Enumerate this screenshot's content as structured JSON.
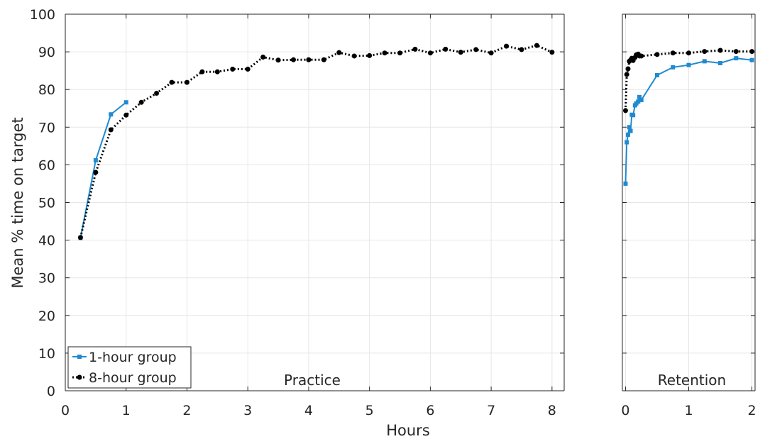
{
  "chart_data": {
    "type": "line",
    "ylabel": "Mean % time on target",
    "xlabel": "Hours",
    "ylim": [
      0,
      100
    ],
    "yticks": [
      0,
      10,
      20,
      30,
      40,
      50,
      60,
      70,
      80,
      90,
      100
    ],
    "grid": true,
    "legend_position": "bottom-left",
    "panels": [
      {
        "label": "Practice",
        "xlim": [
          0,
          8.2
        ],
        "xticks": [
          0,
          1,
          2,
          3,
          4,
          5,
          6,
          7,
          8
        ],
        "series": [
          {
            "name": "1-hour group",
            "color": "#1f8ad0",
            "x": [
              0.25,
              0.5,
              0.75,
              1.0
            ],
            "y": [
              40.6,
              61.2,
              73.4,
              76.6
            ]
          },
          {
            "name": "8-hour group",
            "color": "#000000",
            "x": [
              0.25,
              0.5,
              0.75,
              1.0,
              1.25,
              1.5,
              1.75,
              2.0,
              2.25,
              2.5,
              2.75,
              3.0,
              3.25,
              3.5,
              3.75,
              4.0,
              4.25,
              4.5,
              4.75,
              5.0,
              5.25,
              5.5,
              5.75,
              6.0,
              6.25,
              6.5,
              6.75,
              7.0,
              7.25,
              7.5,
              7.75,
              8.0
            ],
            "y": [
              40.7,
              58.0,
              69.3,
              73.2,
              76.6,
              79.0,
              81.9,
              81.9,
              84.7,
              84.7,
              85.4,
              85.4,
              88.6,
              87.8,
              87.9,
              87.9,
              87.9,
              89.8,
              88.9,
              89.0,
              89.7,
              89.7,
              90.7,
              89.7,
              90.7,
              89.9,
              90.6,
              89.7,
              91.5,
              90.6,
              91.7,
              89.9
            ]
          }
        ]
      },
      {
        "label": "Retention",
        "xlim": [
          -0.05,
          2.05
        ],
        "xticks": [
          0,
          1,
          2
        ],
        "series": [
          {
            "name": "1-hour group",
            "color": "#1f8ad0",
            "x": [
              0.0,
              0.02,
              0.04,
              0.06,
              0.08,
              0.1,
              0.12,
              0.15,
              0.17,
              0.2,
              0.22,
              0.25,
              0.5,
              0.75,
              1.0,
              1.25,
              1.5,
              1.75,
              2.0
            ],
            "y": [
              55.0,
              66.0,
              68.0,
              70.0,
              69.0,
              73.3,
              73.2,
              75.8,
              76.3,
              76.8,
              78.0,
              77.2,
              83.8,
              85.9,
              86.5,
              87.5,
              87.0,
              88.3,
              87.8
            ]
          },
          {
            "name": "8-hour group",
            "color": "#000000",
            "x": [
              0.0,
              0.02,
              0.04,
              0.06,
              0.08,
              0.1,
              0.12,
              0.15,
              0.17,
              0.2,
              0.22,
              0.25,
              0.5,
              0.75,
              1.0,
              1.25,
              1.5,
              1.75,
              2.0
            ],
            "y": [
              74.4,
              84.0,
              85.5,
              87.5,
              87.8,
              88.3,
              87.7,
              88.5,
              89.2,
              89.4,
              88.9,
              88.9,
              89.3,
              89.7,
              89.7,
              90.1,
              90.4,
              90.1,
              90.1
            ]
          }
        ]
      }
    ],
    "legend": [
      {
        "name": "1-hour group",
        "color": "#1f8ad0",
        "marker": "square",
        "line": "solid"
      },
      {
        "name": "8-hour group",
        "color": "#000000",
        "marker": "circle",
        "line": "dotted"
      }
    ]
  }
}
